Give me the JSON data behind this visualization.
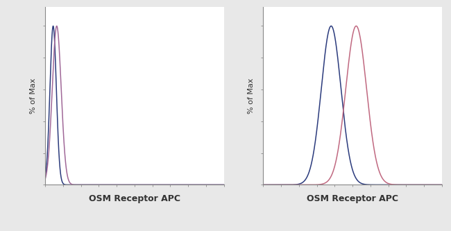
{
  "xlabel": "OSM Receptor APC",
  "ylabel": "% of Max",
  "bg_color": "#ffffff",
  "panel1": {
    "blue": {
      "mu": 0.045,
      "sigma": 0.018,
      "color": "#2a3a7c",
      "lw": 1.1
    },
    "pink": {
      "mu": 0.065,
      "sigma": 0.025,
      "color": "#a06898",
      "lw": 1.1
    },
    "xlim": [
      0,
      1.0
    ],
    "ylim": [
      0,
      1.12
    ]
  },
  "panel2": {
    "blue": {
      "mu": 0.38,
      "sigma": 0.055,
      "color": "#2a3a7c",
      "lw": 1.1
    },
    "pink": {
      "mu": 0.52,
      "sigma": 0.058,
      "color": "#c06880",
      "lw": 1.1
    },
    "xlim": [
      0.0,
      1.0
    ],
    "ylim": [
      0,
      1.12
    ]
  },
  "tick_color": "#888888",
  "axis_color": "#888888",
  "xlabel_fontsize": 9,
  "ylabel_fontsize": 8,
  "fig_bg": "#e8e8e8",
  "panel_bg": "#ffffff"
}
